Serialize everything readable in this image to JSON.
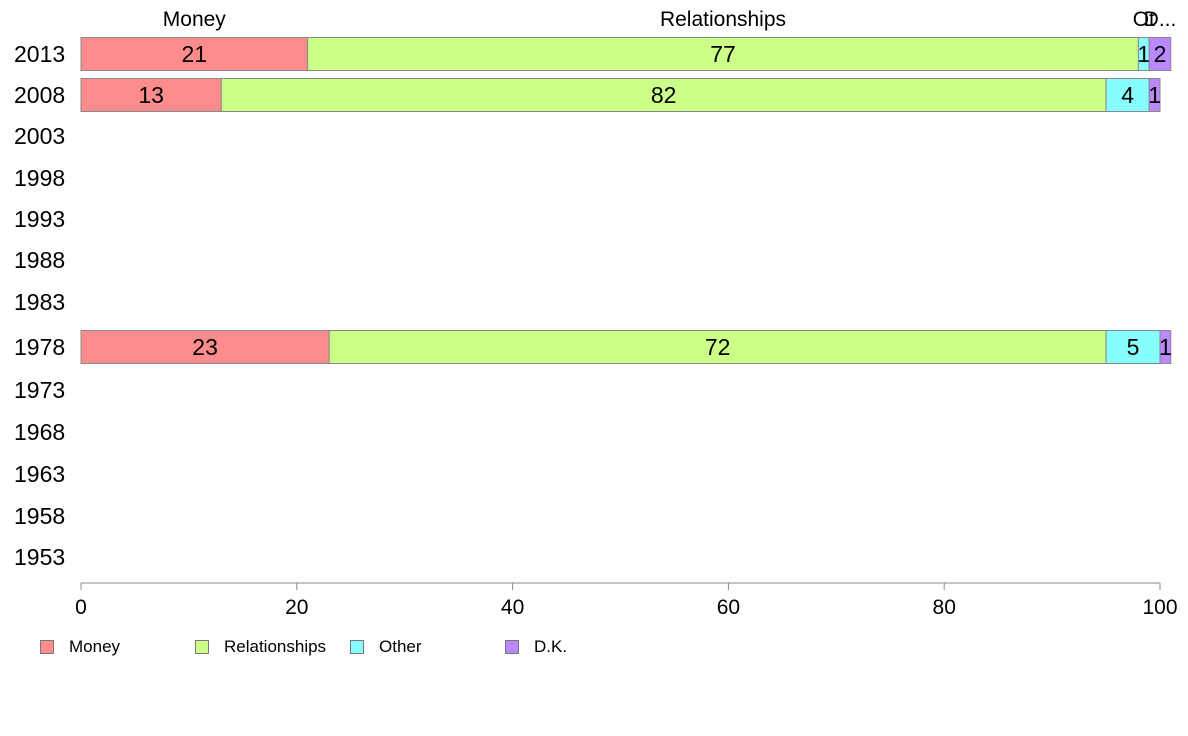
{
  "chart_data": {
    "type": "bar",
    "orientation": "horizontal",
    "stacked": true,
    "categories": [
      "2013",
      "2008",
      "2003",
      "1998",
      "1993",
      "1988",
      "1983",
      "1978",
      "1973",
      "1968",
      "1963",
      "1958",
      "1953"
    ],
    "series": [
      {
        "name": "Money",
        "color": "#FF8C8C",
        "values": [
          21,
          13,
          null,
          null,
          null,
          null,
          null,
          23,
          null,
          null,
          null,
          null,
          null
        ]
      },
      {
        "name": "Relationships",
        "color": "#CCFF88",
        "values": [
          77,
          82,
          null,
          null,
          null,
          null,
          null,
          72,
          null,
          null,
          null,
          null,
          null
        ]
      },
      {
        "name": "Other",
        "color": "#88FFFF",
        "values": [
          1,
          4,
          null,
          null,
          null,
          null,
          null,
          5,
          null,
          null,
          null,
          null,
          null
        ]
      },
      {
        "name": "D.K.",
        "color": "#BB88FF",
        "values": [
          2,
          1,
          null,
          null,
          null,
          null,
          null,
          1,
          null,
          null,
          null,
          null,
          null
        ]
      }
    ],
    "top_labels": [
      "Money",
      "Relationships",
      "Ot",
      "D..."
    ],
    "xlim": [
      0,
      100
    ],
    "xticks": [
      0,
      20,
      40,
      60,
      80,
      100
    ],
    "grid": false,
    "legend_position": "bottom"
  }
}
